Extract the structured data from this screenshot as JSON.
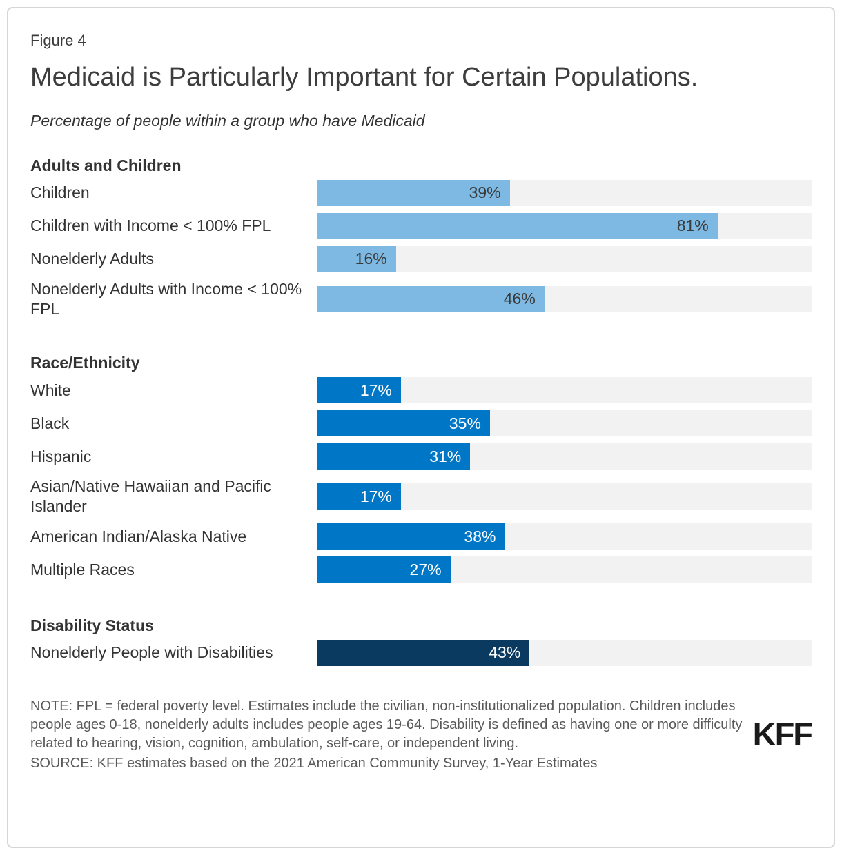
{
  "page": {
    "figure_label": "Figure 4",
    "title": "Medicaid is Particularly Important for Certain Populations.",
    "subtitle": "Percentage of people within a group who have Medicaid",
    "note": "NOTE: FPL = federal poverty level. Estimates include the civilian, non-institutionalized population. Children includes people ages 0-18, nonelderly adults includes people ages 19-64. Disability is defined as having one or more difficulty related to hearing, vision, cognition, ambulation, self-care, or independent living.",
    "source": "SOURCE: KFF estimates based on the 2021 American Community Survey, 1-Year Estimates",
    "logo_text": "KFF"
  },
  "colors": {
    "adults_children_bar": "#7db9e2",
    "race_ethnicity_bar": "#0076c7",
    "disability_bar": "#0a3a60",
    "bar_track": "#f2f2f2",
    "value_on_light_bar": "#3a3a3a",
    "value_on_dark_bar": "#ffffff"
  },
  "sections": [
    {
      "header": "Adults and Children",
      "bar_color": "#7db9e2",
      "value_color": "#3a3a3a",
      "rows": [
        {
          "label": "Children",
          "value": 39,
          "value_label": "39%"
        },
        {
          "label": "Children with Income < 100% FPL",
          "value": 81,
          "value_label": "81%"
        },
        {
          "label": "Nonelderly Adults",
          "value": 16,
          "value_label": "16%"
        },
        {
          "label": "Nonelderly Adults with Income < 100% FPL",
          "value": 46,
          "value_label": "46%"
        }
      ]
    },
    {
      "header": "Race/Ethnicity",
      "bar_color": "#0076c7",
      "value_color": "#ffffff",
      "rows": [
        {
          "label": "White",
          "value": 17,
          "value_label": "17%"
        },
        {
          "label": "Black",
          "value": 35,
          "value_label": "35%"
        },
        {
          "label": "Hispanic",
          "value": 31,
          "value_label": "31%"
        },
        {
          "label": "Asian/Native Hawaiian and Pacific Islander",
          "value": 17,
          "value_label": "17%"
        },
        {
          "label": "American Indian/Alaska Native",
          "value": 38,
          "value_label": "38%"
        },
        {
          "label": "Multiple Races",
          "value": 27,
          "value_label": "27%"
        }
      ]
    },
    {
      "header": "Disability Status",
      "bar_color": "#0a3a60",
      "value_color": "#ffffff",
      "rows": [
        {
          "label": "Nonelderly People with Disabilities",
          "value": 43,
          "value_label": "43%"
        }
      ]
    }
  ],
  "chart_data": {
    "type": "bar",
    "orientation": "horizontal",
    "title": "Medicaid is Particularly Important for Certain Populations.",
    "subtitle": "Percentage of people within a group who have Medicaid",
    "unit": "%",
    "x_range": [
      0,
      100
    ],
    "grid": false,
    "legend": "none",
    "value_labels": "inside-end",
    "groups": [
      {
        "name": "Adults and Children",
        "color": "#7db9e2",
        "categories": [
          "Children",
          "Children with Income < 100% FPL",
          "Nonelderly Adults",
          "Nonelderly Adults with Income < 100% FPL"
        ],
        "values": [
          39,
          81,
          16,
          46
        ]
      },
      {
        "name": "Race/Ethnicity",
        "color": "#0076c7",
        "categories": [
          "White",
          "Black",
          "Hispanic",
          "Asian/Native Hawaiian and Pacific Islander",
          "American Indian/Alaska Native",
          "Multiple Races"
        ],
        "values": [
          17,
          35,
          31,
          17,
          38,
          27
        ]
      },
      {
        "name": "Disability Status",
        "color": "#0a3a60",
        "categories": [
          "Nonelderly People with Disabilities"
        ],
        "values": [
          43
        ]
      }
    ]
  }
}
